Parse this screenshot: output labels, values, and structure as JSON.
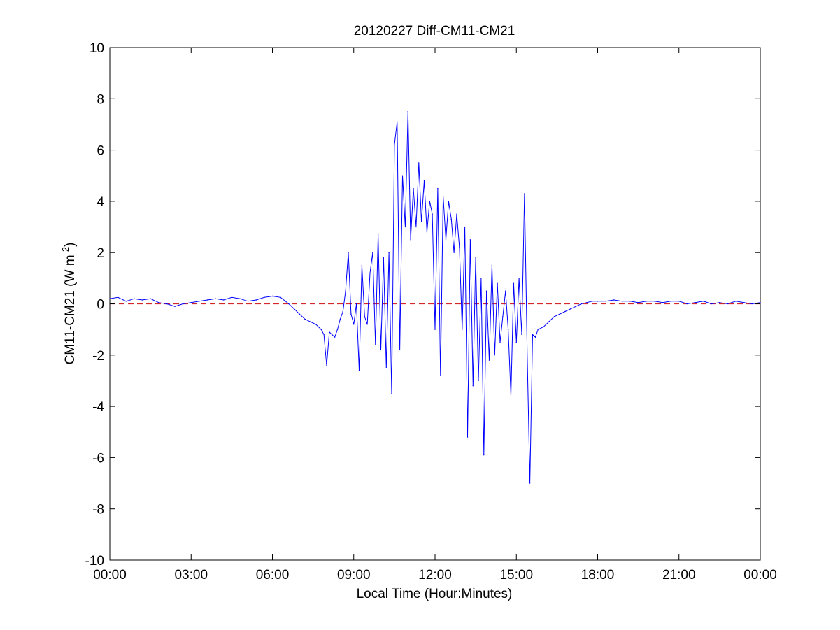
{
  "chart_data": {
    "type": "line",
    "title": "20120227 Diff-CM11-CM21",
    "xlabel": "Local Time (Hour:Minutes)",
    "ylabel": "CM11-CM21 (W m",
    "ylabel_sup": "-2",
    "ylabel_close": ")",
    "x_unit": "hours",
    "xlim": [
      0,
      24
    ],
    "ylim": [
      -10,
      10
    ],
    "x_ticks": [
      0,
      3,
      6,
      9,
      12,
      15,
      18,
      21,
      24
    ],
    "x_tick_labels": [
      "00:00",
      "03:00",
      "06:00",
      "09:00",
      "12:00",
      "15:00",
      "18:00",
      "21:00",
      "00:00"
    ],
    "y_ticks": [
      -10,
      -8,
      -6,
      -4,
      -2,
      0,
      2,
      4,
      6,
      8,
      10
    ],
    "y_tick_labels": [
      "-10",
      "-8",
      "-6",
      "-4",
      "-2",
      "0",
      "2",
      "4",
      "6",
      "8",
      "10"
    ],
    "grid": false,
    "reference_line": {
      "y": 0,
      "color": "#d62728",
      "style": "dashed"
    },
    "series": [
      {
        "color": "#0000ff",
        "x": [
          0.0,
          0.3,
          0.6,
          0.9,
          1.2,
          1.5,
          1.8,
          2.1,
          2.4,
          2.7,
          3.0,
          3.3,
          3.6,
          3.9,
          4.2,
          4.5,
          4.8,
          5.1,
          5.4,
          5.7,
          6.0,
          6.3,
          6.6,
          6.8,
          7.0,
          7.2,
          7.4,
          7.6,
          7.8,
          7.9,
          8.0,
          8.1,
          8.2,
          8.3,
          8.4,
          8.5,
          8.6,
          8.7,
          8.8,
          8.9,
          9.0,
          9.1,
          9.2,
          9.3,
          9.4,
          9.5,
          9.6,
          9.7,
          9.8,
          9.9,
          10.0,
          10.1,
          10.2,
          10.3,
          10.4,
          10.5,
          10.6,
          10.7,
          10.8,
          10.9,
          11.0,
          11.1,
          11.2,
          11.3,
          11.4,
          11.5,
          11.6,
          11.7,
          11.8,
          11.9,
          12.0,
          12.1,
          12.2,
          12.3,
          12.4,
          12.5,
          12.6,
          12.7,
          12.8,
          12.9,
          13.0,
          13.1,
          13.2,
          13.3,
          13.4,
          13.5,
          13.6,
          13.7,
          13.8,
          13.9,
          14.0,
          14.1,
          14.2,
          14.3,
          14.4,
          14.5,
          14.6,
          14.7,
          14.8,
          14.9,
          15.0,
          15.1,
          15.2,
          15.3,
          15.4,
          15.5,
          15.6,
          15.7,
          15.8,
          16.0,
          16.2,
          16.4,
          16.6,
          16.8,
          17.0,
          17.2,
          17.4,
          17.6,
          17.8,
          18.0,
          18.3,
          18.6,
          18.9,
          19.2,
          19.5,
          19.8,
          20.1,
          20.4,
          20.7,
          21.0,
          21.3,
          21.6,
          21.9,
          22.2,
          22.5,
          22.8,
          23.1,
          23.4,
          23.7,
          24.0
        ],
        "y": [
          0.2,
          0.25,
          0.1,
          0.2,
          0.15,
          0.2,
          0.05,
          0.0,
          -0.1,
          0.0,
          0.05,
          0.1,
          0.15,
          0.2,
          0.15,
          0.25,
          0.2,
          0.1,
          0.15,
          0.25,
          0.3,
          0.25,
          0.0,
          -0.2,
          -0.4,
          -0.6,
          -0.7,
          -0.8,
          -1.0,
          -1.2,
          -2.4,
          -1.1,
          -1.2,
          -1.3,
          -1.0,
          -0.6,
          -0.3,
          0.5,
          2.0,
          -0.4,
          -0.8,
          0.0,
          -2.6,
          1.5,
          -0.5,
          -0.8,
          1.2,
          2.0,
          -1.6,
          2.7,
          -1.8,
          1.8,
          -2.5,
          2.0,
          -3.5,
          6.2,
          7.1,
          -1.8,
          5.0,
          3.0,
          7.5,
          2.5,
          4.5,
          3.0,
          5.5,
          3.2,
          4.8,
          2.8,
          4.0,
          3.5,
          -1.0,
          4.5,
          -2.8,
          4.2,
          2.5,
          4.0,
          3.3,
          2.0,
          3.5,
          2.2,
          -1.0,
          3.0,
          -5.2,
          2.5,
          -3.2,
          1.8,
          -3.0,
          1.0,
          -5.9,
          0.5,
          -2.2,
          1.5,
          -2.0,
          0.8,
          -1.5,
          -0.5,
          0.5,
          -1.0,
          -3.6,
          0.8,
          -1.5,
          1.0,
          -1.2,
          4.3,
          -2.0,
          -7.0,
          -1.2,
          -1.3,
          -1.0,
          -0.9,
          -0.7,
          -0.5,
          -0.4,
          -0.3,
          -0.2,
          -0.1,
          0.0,
          0.05,
          0.1,
          0.1,
          0.1,
          0.15,
          0.1,
          0.1,
          0.05,
          0.1,
          0.1,
          0.05,
          0.1,
          0.1,
          0.0,
          0.05,
          0.1,
          0.0,
          0.05,
          0.0,
          0.1,
          0.05,
          0.0,
          0.05
        ]
      }
    ]
  }
}
